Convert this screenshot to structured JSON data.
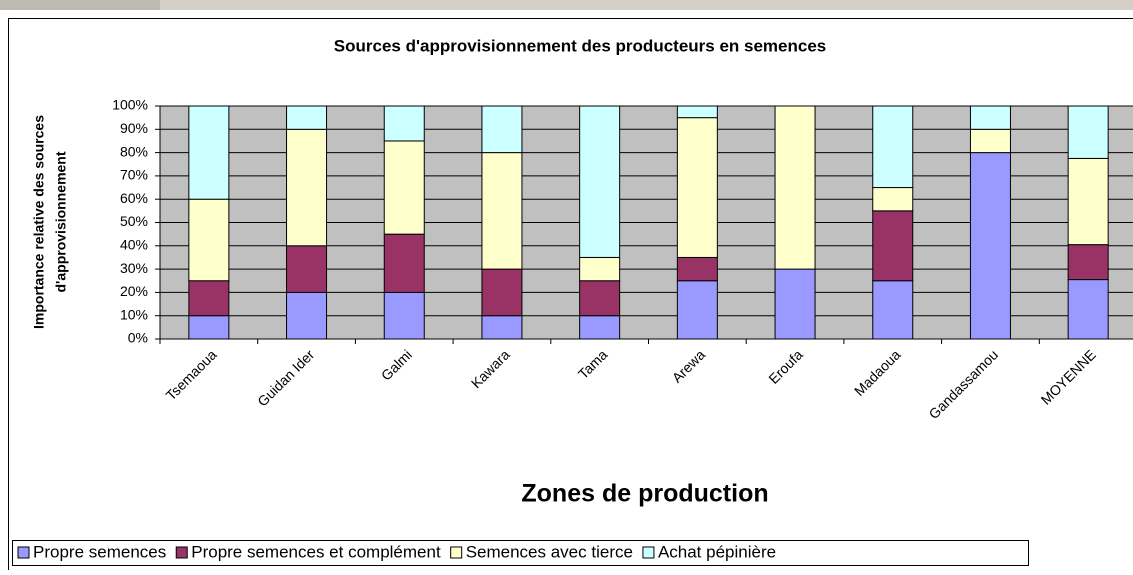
{
  "chart_data": {
    "type": "stacked_bar",
    "title": "Sources d'approvisionnement des producteurs en semences",
    "y_label": [
      "Importance relative des sources",
      "d'approvisionnement"
    ],
    "x_label": "Zones de production",
    "categories": [
      "Tsemaoua",
      "Guidan Ider",
      "Galmi",
      "Kawara",
      "Tama",
      "Arewa",
      "Eroufa",
      "Madaoua",
      "Gandassamou",
      "MOYENNE"
    ],
    "series": [
      {
        "name": "Propre semences",
        "color": "#9999ff",
        "values": [
          10,
          20,
          20,
          10,
          10,
          25,
          30,
          25,
          80,
          25.5
        ]
      },
      {
        "name": "Propre semences et complément",
        "color": "#993366",
        "values": [
          15,
          20,
          25,
          20,
          15,
          10,
          0,
          30,
          0,
          15
        ]
      },
      {
        "name": "Semences avec tierce",
        "color": "#ffffcc",
        "values": [
          35,
          50,
          40,
          50,
          10,
          60,
          70,
          10,
          10,
          37
        ]
      },
      {
        "name": "Achat pépinière",
        "color": "#ccffff",
        "values": [
          40,
          10,
          15,
          20,
          65,
          5,
          0,
          35,
          10,
          22.5
        ]
      }
    ],
    "ylim": [
      0,
      100
    ],
    "yticks": [
      {
        "value": 0,
        "label": "0%"
      },
      {
        "value": 10,
        "label": "10%"
      },
      {
        "value": 20,
        "label": "20%"
      },
      {
        "value": 30,
        "label": "30%"
      },
      {
        "value": 40,
        "label": "40%"
      },
      {
        "value": 50,
        "label": "50%"
      },
      {
        "value": 60,
        "label": "60%"
      },
      {
        "value": 70,
        "label": "70%"
      },
      {
        "value": 80,
        "label": "80%"
      },
      {
        "value": 90,
        "label": "90%"
      },
      {
        "value": 100,
        "label": "100%"
      }
    ],
    "grid": true,
    "legend": "bottom"
  }
}
